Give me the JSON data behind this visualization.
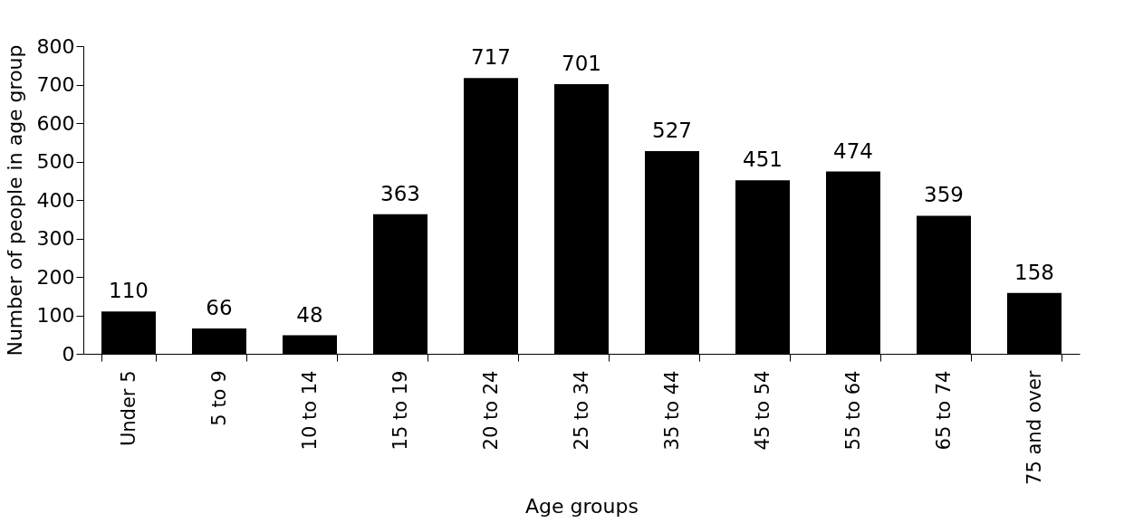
{
  "chart_data": {
    "type": "bar",
    "xlabel": "Age groups",
    "ylabel": "Number of people in age group",
    "categories": [
      "Under 5",
      "5 to 9",
      "10 to 14",
      "15 to 19",
      "20 to 24",
      "25 to 34",
      "35 to 44",
      "45 to 54",
      "55 to 64",
      "65 to 74",
      "75 and over"
    ],
    "values": [
      110,
      66,
      48,
      363,
      717,
      701,
      527,
      451,
      474,
      359,
      158
    ],
    "color": "#000000",
    "ylim": [
      0,
      800
    ],
    "yticks": [
      0,
      100,
      200,
      300,
      400,
      500,
      600,
      700,
      800
    ],
    "grid": false,
    "data_labels": true
  }
}
